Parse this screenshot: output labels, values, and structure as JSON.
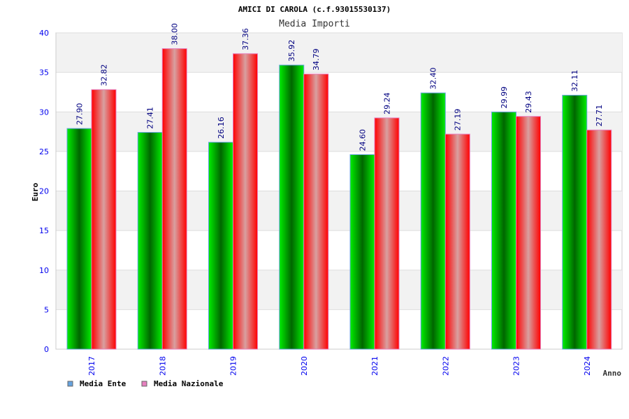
{
  "chart_data": {
    "type": "bar",
    "title": "AMICI DI CAROLA (c.f.93015530137)",
    "subtitle": "Media Importi",
    "xlabel": "Anno",
    "ylabel": "Euro",
    "ylim": [
      0,
      40
    ],
    "yticks": [
      "0",
      "5",
      "10",
      "15",
      "20",
      "25",
      "30",
      "35",
      "40"
    ],
    "categories": [
      "2017",
      "2018",
      "2019",
      "2020",
      "2021",
      "2022",
      "2023",
      "2024"
    ],
    "series": [
      {
        "name": "Media Ente",
        "color": "#00cc00",
        "legend_color": "#66a3e0",
        "values": [
          27.9,
          27.41,
          26.16,
          35.92,
          24.6,
          32.4,
          29.99,
          32.11
        ],
        "labels": [
          "27.90",
          "27.41",
          "26.16",
          "35.92",
          "24.60",
          "32.40",
          "29.99",
          "32.11"
        ]
      },
      {
        "name": "Media Nazionale",
        "color": "#ff0000",
        "legend_color": "#e77fbf",
        "values": [
          32.82,
          38.0,
          37.36,
          34.79,
          29.24,
          27.19,
          29.43,
          27.71
        ],
        "labels": [
          "32.82",
          "38.00",
          "37.36",
          "34.79",
          "29.24",
          "27.19",
          "29.43",
          "27.71"
        ]
      }
    ],
    "grid": true,
    "legend": "bottom-left"
  }
}
